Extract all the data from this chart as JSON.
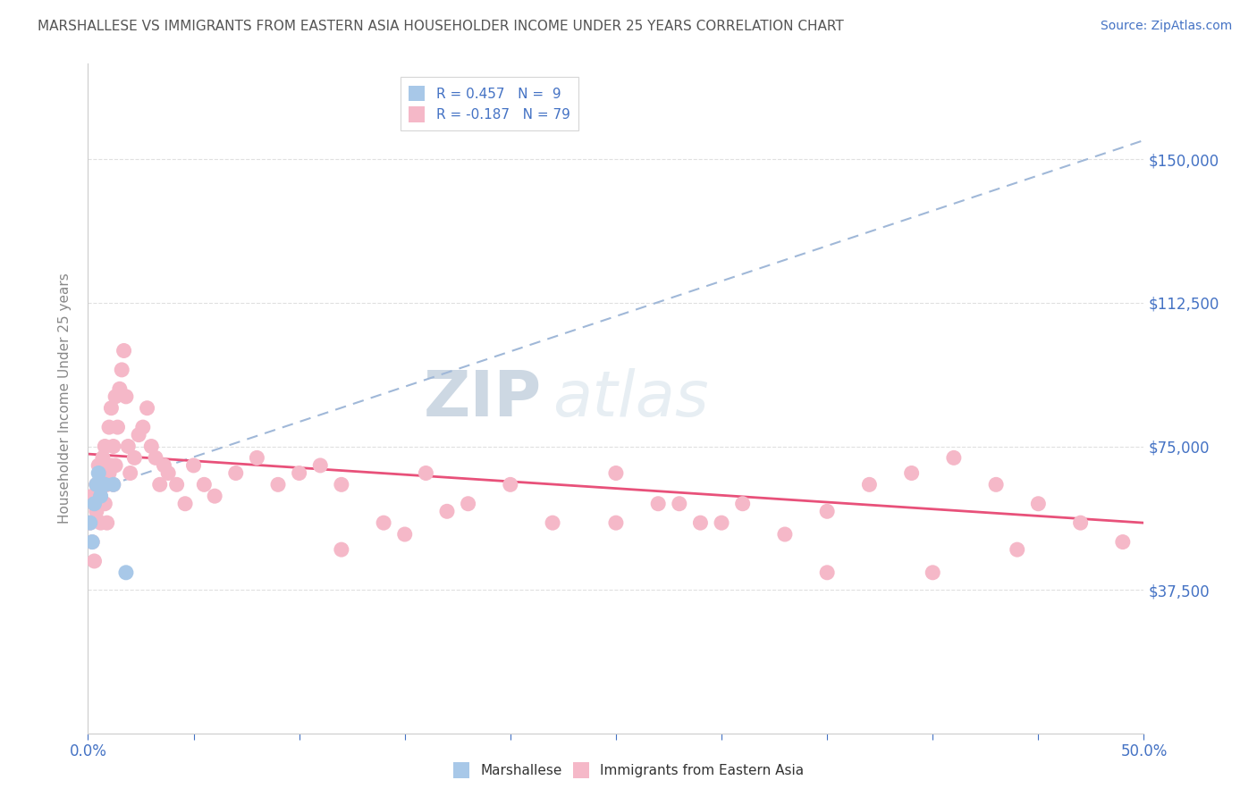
{
  "title": "MARSHALLESE VS IMMIGRANTS FROM EASTERN ASIA HOUSEHOLDER INCOME UNDER 25 YEARS CORRELATION CHART",
  "source": "Source: ZipAtlas.com",
  "ylabel": "Householder Income Under 25 years",
  "xlim": [
    0.0,
    0.5
  ],
  "ylim": [
    0,
    175000
  ],
  "yticks": [
    37500,
    75000,
    112500,
    150000
  ],
  "ytick_labels": [
    "$37,500",
    "$75,000",
    "$112,500",
    "$150,000"
  ],
  "xticks": [
    0.0,
    0.05,
    0.1,
    0.15,
    0.2,
    0.25,
    0.3,
    0.35,
    0.4,
    0.45,
    0.5
  ],
  "xtick_labels_shown": {
    "0.0": "0.0%",
    "0.5": "50.0%"
  },
  "legend1_label": "R = 0.457   N =  9",
  "legend2_label": "R = -0.187   N = 79",
  "watermark_zip": "ZIP",
  "watermark_atlas": "atlas",
  "title_color": "#555555",
  "axis_label_color": "#4472c4",
  "marshallese_color": "#a8c8e8",
  "eastern_asia_color": "#f5b8c8",
  "trend_blue_color": "#a8c8e8",
  "trend_pink_color": "#e8517a",
  "background_color": "#ffffff",
  "grid_color": "#e0e0e0",
  "marshallese_x": [
    0.001,
    0.002,
    0.003,
    0.004,
    0.005,
    0.006,
    0.008,
    0.012,
    0.018
  ],
  "marshallese_y": [
    55000,
    50000,
    60000,
    65000,
    68000,
    62000,
    65000,
    65000,
    42000
  ],
  "eastern_asia_x": [
    0.001,
    0.002,
    0.002,
    0.003,
    0.003,
    0.004,
    0.004,
    0.005,
    0.005,
    0.006,
    0.006,
    0.007,
    0.007,
    0.008,
    0.008,
    0.009,
    0.009,
    0.01,
    0.01,
    0.011,
    0.011,
    0.012,
    0.012,
    0.013,
    0.013,
    0.014,
    0.015,
    0.016,
    0.017,
    0.018,
    0.019,
    0.02,
    0.022,
    0.024,
    0.026,
    0.028,
    0.03,
    0.032,
    0.034,
    0.036,
    0.038,
    0.042,
    0.046,
    0.05,
    0.055,
    0.06,
    0.07,
    0.08,
    0.09,
    0.1,
    0.11,
    0.12,
    0.14,
    0.16,
    0.18,
    0.2,
    0.22,
    0.25,
    0.27,
    0.29,
    0.31,
    0.33,
    0.35,
    0.37,
    0.39,
    0.41,
    0.43,
    0.45,
    0.47,
    0.49,
    0.12,
    0.15,
    0.17,
    0.25,
    0.28,
    0.3,
    0.35,
    0.4,
    0.44
  ],
  "eastern_asia_y": [
    55000,
    50000,
    62000,
    60000,
    45000,
    58000,
    65000,
    60000,
    70000,
    65000,
    55000,
    68000,
    72000,
    60000,
    75000,
    65000,
    55000,
    68000,
    80000,
    70000,
    85000,
    65000,
    75000,
    70000,
    88000,
    80000,
    90000,
    95000,
    100000,
    88000,
    75000,
    68000,
    72000,
    78000,
    80000,
    85000,
    75000,
    72000,
    65000,
    70000,
    68000,
    65000,
    60000,
    70000,
    65000,
    62000,
    68000,
    72000,
    65000,
    68000,
    70000,
    65000,
    55000,
    68000,
    60000,
    65000,
    55000,
    68000,
    60000,
    55000,
    60000,
    52000,
    58000,
    65000,
    68000,
    72000,
    65000,
    60000,
    55000,
    50000,
    48000,
    52000,
    58000,
    55000,
    60000,
    55000,
    42000,
    42000,
    48000
  ]
}
